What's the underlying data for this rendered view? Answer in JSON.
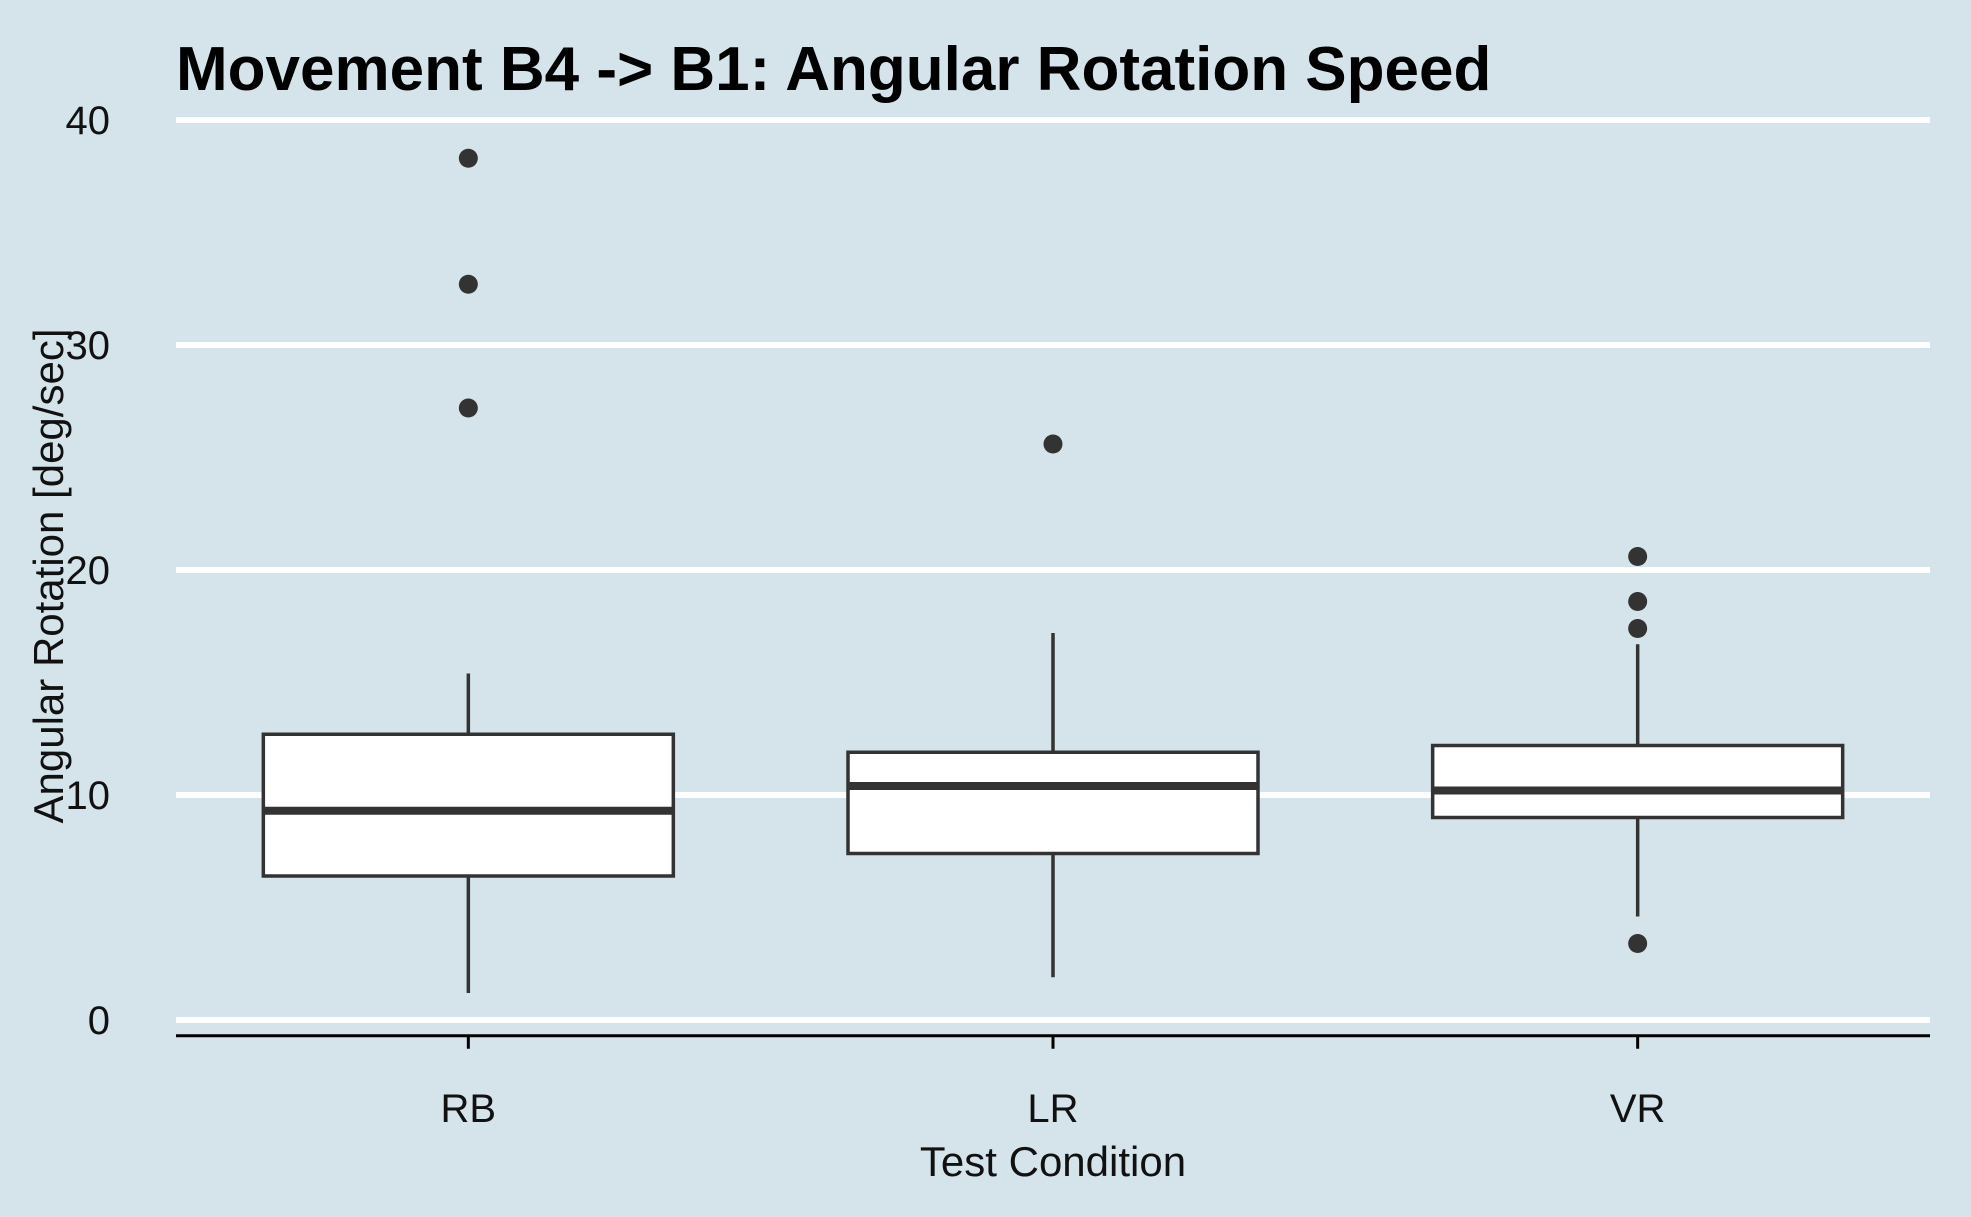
{
  "colors": {
    "background": "#d5e4eb",
    "gridline": "#ffffff",
    "box_fill": "#ffffff",
    "box_stroke": "#333333",
    "outlier": "#333333",
    "axis": "#000000"
  },
  "chart_data": {
    "type": "boxplot",
    "title": "Movement B4 -> B1: Angular Rotation Speed",
    "xlabel": "Test Condition",
    "ylabel": "Angular Rotation [deg/sec]",
    "ylim": [
      -0.7,
      40.3
    ],
    "y_ticks": [
      0,
      10,
      20,
      30,
      40
    ],
    "y_tick_labels": [
      "0",
      "10",
      "20",
      "30",
      "40"
    ],
    "grid": "horizontal major lines",
    "legend": "none",
    "categories": [
      "RB",
      "LR",
      "VR"
    ],
    "boxes": [
      {
        "category": "RB",
        "whisker_low": 1.2,
        "q1": 6.4,
        "median": 9.3,
        "q3": 12.7,
        "whisker_high": 15.4,
        "outliers": [
          27.2,
          32.7,
          38.3
        ]
      },
      {
        "category": "LR",
        "whisker_low": 1.9,
        "q1": 7.4,
        "median": 10.4,
        "q3": 11.9,
        "whisker_high": 17.2,
        "outliers": [
          25.6
        ]
      },
      {
        "category": "VR",
        "whisker_low": 4.6,
        "q1": 9.0,
        "median": 10.2,
        "q3": 12.2,
        "whisker_high": 16.7,
        "outliers": [
          3.4,
          17.4,
          18.6,
          20.6
        ]
      }
    ]
  }
}
